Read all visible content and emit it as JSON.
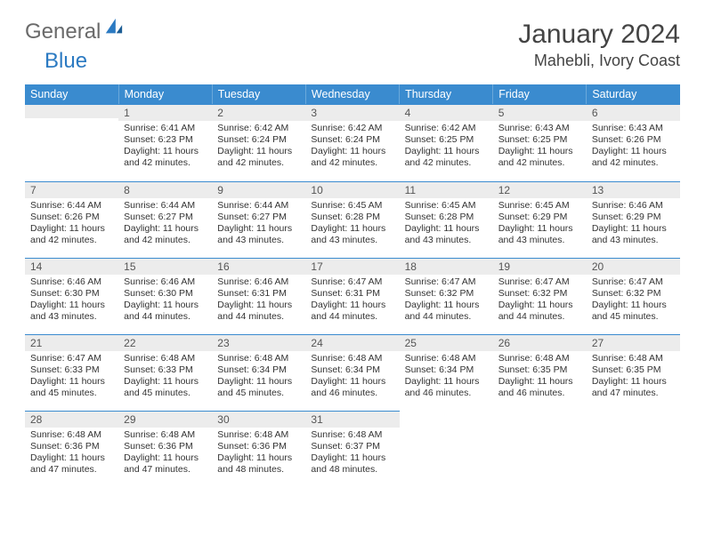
{
  "logo": {
    "word1": "General",
    "word2": "Blue"
  },
  "title": "January 2024",
  "location": "Mahebli, Ivory Coast",
  "daysOfWeek": [
    "Sunday",
    "Monday",
    "Tuesday",
    "Wednesday",
    "Thursday",
    "Friday",
    "Saturday"
  ],
  "colors": {
    "headerBg": "#3a8bcf",
    "headerText": "#ffffff",
    "dayNumBg": "#ececec",
    "borderTop": "#3a8bcf"
  },
  "weeks": [
    [
      {
        "n": "",
        "sunrise": "",
        "sunset": "",
        "daylight": ""
      },
      {
        "n": "1",
        "sunrise": "Sunrise: 6:41 AM",
        "sunset": "Sunset: 6:23 PM",
        "daylight": "Daylight: 11 hours and 42 minutes."
      },
      {
        "n": "2",
        "sunrise": "Sunrise: 6:42 AM",
        "sunset": "Sunset: 6:24 PM",
        "daylight": "Daylight: 11 hours and 42 minutes."
      },
      {
        "n": "3",
        "sunrise": "Sunrise: 6:42 AM",
        "sunset": "Sunset: 6:24 PM",
        "daylight": "Daylight: 11 hours and 42 minutes."
      },
      {
        "n": "4",
        "sunrise": "Sunrise: 6:42 AM",
        "sunset": "Sunset: 6:25 PM",
        "daylight": "Daylight: 11 hours and 42 minutes."
      },
      {
        "n": "5",
        "sunrise": "Sunrise: 6:43 AM",
        "sunset": "Sunset: 6:25 PM",
        "daylight": "Daylight: 11 hours and 42 minutes."
      },
      {
        "n": "6",
        "sunrise": "Sunrise: 6:43 AM",
        "sunset": "Sunset: 6:26 PM",
        "daylight": "Daylight: 11 hours and 42 minutes."
      }
    ],
    [
      {
        "n": "7",
        "sunrise": "Sunrise: 6:44 AM",
        "sunset": "Sunset: 6:26 PM",
        "daylight": "Daylight: 11 hours and 42 minutes."
      },
      {
        "n": "8",
        "sunrise": "Sunrise: 6:44 AM",
        "sunset": "Sunset: 6:27 PM",
        "daylight": "Daylight: 11 hours and 42 minutes."
      },
      {
        "n": "9",
        "sunrise": "Sunrise: 6:44 AM",
        "sunset": "Sunset: 6:27 PM",
        "daylight": "Daylight: 11 hours and 43 minutes."
      },
      {
        "n": "10",
        "sunrise": "Sunrise: 6:45 AM",
        "sunset": "Sunset: 6:28 PM",
        "daylight": "Daylight: 11 hours and 43 minutes."
      },
      {
        "n": "11",
        "sunrise": "Sunrise: 6:45 AM",
        "sunset": "Sunset: 6:28 PM",
        "daylight": "Daylight: 11 hours and 43 minutes."
      },
      {
        "n": "12",
        "sunrise": "Sunrise: 6:45 AM",
        "sunset": "Sunset: 6:29 PM",
        "daylight": "Daylight: 11 hours and 43 minutes."
      },
      {
        "n": "13",
        "sunrise": "Sunrise: 6:46 AM",
        "sunset": "Sunset: 6:29 PM",
        "daylight": "Daylight: 11 hours and 43 minutes."
      }
    ],
    [
      {
        "n": "14",
        "sunrise": "Sunrise: 6:46 AM",
        "sunset": "Sunset: 6:30 PM",
        "daylight": "Daylight: 11 hours and 43 minutes."
      },
      {
        "n": "15",
        "sunrise": "Sunrise: 6:46 AM",
        "sunset": "Sunset: 6:30 PM",
        "daylight": "Daylight: 11 hours and 44 minutes."
      },
      {
        "n": "16",
        "sunrise": "Sunrise: 6:46 AM",
        "sunset": "Sunset: 6:31 PM",
        "daylight": "Daylight: 11 hours and 44 minutes."
      },
      {
        "n": "17",
        "sunrise": "Sunrise: 6:47 AM",
        "sunset": "Sunset: 6:31 PM",
        "daylight": "Daylight: 11 hours and 44 minutes."
      },
      {
        "n": "18",
        "sunrise": "Sunrise: 6:47 AM",
        "sunset": "Sunset: 6:32 PM",
        "daylight": "Daylight: 11 hours and 44 minutes."
      },
      {
        "n": "19",
        "sunrise": "Sunrise: 6:47 AM",
        "sunset": "Sunset: 6:32 PM",
        "daylight": "Daylight: 11 hours and 44 minutes."
      },
      {
        "n": "20",
        "sunrise": "Sunrise: 6:47 AM",
        "sunset": "Sunset: 6:32 PM",
        "daylight": "Daylight: 11 hours and 45 minutes."
      }
    ],
    [
      {
        "n": "21",
        "sunrise": "Sunrise: 6:47 AM",
        "sunset": "Sunset: 6:33 PM",
        "daylight": "Daylight: 11 hours and 45 minutes."
      },
      {
        "n": "22",
        "sunrise": "Sunrise: 6:48 AM",
        "sunset": "Sunset: 6:33 PM",
        "daylight": "Daylight: 11 hours and 45 minutes."
      },
      {
        "n": "23",
        "sunrise": "Sunrise: 6:48 AM",
        "sunset": "Sunset: 6:34 PM",
        "daylight": "Daylight: 11 hours and 45 minutes."
      },
      {
        "n": "24",
        "sunrise": "Sunrise: 6:48 AM",
        "sunset": "Sunset: 6:34 PM",
        "daylight": "Daylight: 11 hours and 46 minutes."
      },
      {
        "n": "25",
        "sunrise": "Sunrise: 6:48 AM",
        "sunset": "Sunset: 6:34 PM",
        "daylight": "Daylight: 11 hours and 46 minutes."
      },
      {
        "n": "26",
        "sunrise": "Sunrise: 6:48 AM",
        "sunset": "Sunset: 6:35 PM",
        "daylight": "Daylight: 11 hours and 46 minutes."
      },
      {
        "n": "27",
        "sunrise": "Sunrise: 6:48 AM",
        "sunset": "Sunset: 6:35 PM",
        "daylight": "Daylight: 11 hours and 47 minutes."
      }
    ],
    [
      {
        "n": "28",
        "sunrise": "Sunrise: 6:48 AM",
        "sunset": "Sunset: 6:36 PM",
        "daylight": "Daylight: 11 hours and 47 minutes."
      },
      {
        "n": "29",
        "sunrise": "Sunrise: 6:48 AM",
        "sunset": "Sunset: 6:36 PM",
        "daylight": "Daylight: 11 hours and 47 minutes."
      },
      {
        "n": "30",
        "sunrise": "Sunrise: 6:48 AM",
        "sunset": "Sunset: 6:36 PM",
        "daylight": "Daylight: 11 hours and 48 minutes."
      },
      {
        "n": "31",
        "sunrise": "Sunrise: 6:48 AM",
        "sunset": "Sunset: 6:37 PM",
        "daylight": "Daylight: 11 hours and 48 minutes."
      },
      {
        "n": "",
        "sunrise": "",
        "sunset": "",
        "daylight": ""
      },
      {
        "n": "",
        "sunrise": "",
        "sunset": "",
        "daylight": ""
      },
      {
        "n": "",
        "sunrise": "",
        "sunset": "",
        "daylight": ""
      }
    ]
  ]
}
